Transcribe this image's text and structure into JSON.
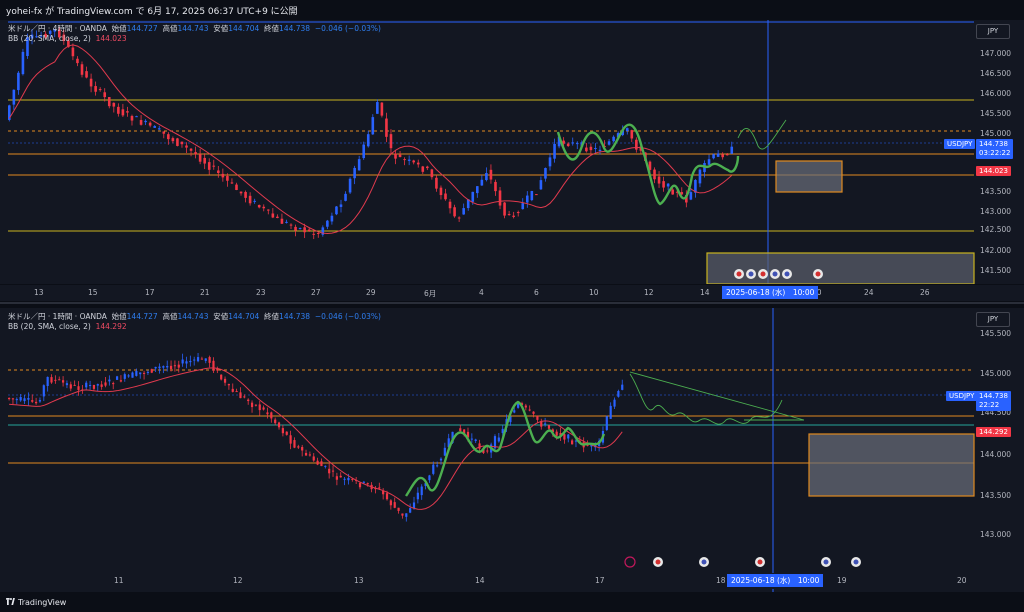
{
  "header": {
    "publish_line": "yohei-fx が TradingView.com で 6月 17, 2025 06:37 UTC+9 に公開"
  },
  "pane_a": {
    "symbol": "米ドル／円 · 4時間 · OANDA",
    "open_label": "始値",
    "open": "144.727",
    "high_label": "高値",
    "high": "144.743",
    "low_label": "安値",
    "low": "144.704",
    "close_label": "終値",
    "close": "144.738",
    "change": "−0.046 (−0.03%)",
    "bb_label": "BB (20, SMA, close, 2)",
    "bb_value": "144.023",
    "currency": "JPY",
    "price_ticks": [
      "147.000",
      "146.500",
      "146.000",
      "145.500",
      "145.000",
      "144.500",
      "144.000",
      "143.500",
      "143.000",
      "142.500",
      "142.000",
      "141.500"
    ],
    "tag_symbol": "USDJPY",
    "tag_price": "144.738",
    "tag_countdown": "03:22:22",
    "tag_bb": "144.023",
    "x_labels": [
      "13",
      "15",
      "17",
      "21",
      "23",
      "27",
      "29",
      "6月",
      "4",
      "6",
      "10",
      "12",
      "14",
      "20",
      "24",
      "26"
    ],
    "crosshair_date": "2025-06-18 (水)　10:00"
  },
  "pane_b": {
    "symbol": "米ドル／円 · 1時間 · OANDA",
    "open_label": "始値",
    "open": "144.727",
    "high_label": "高値",
    "high": "144.743",
    "low_label": "安値",
    "low": "144.704",
    "close_label": "終値",
    "close": "144.738",
    "change": "−0.046 (−0.03%)",
    "bb_label": "BB (20, SMA, close, 2)",
    "bb_value": "144.292",
    "currency": "JPY",
    "price_ticks": [
      "145.500",
      "145.000",
      "144.500",
      "144.000",
      "143.500",
      "143.000"
    ],
    "tag_symbol": "USDJPY",
    "tag_price": "144.738",
    "tag_countdown": "22:22",
    "tag_bb": "144.292",
    "x_labels": [
      "11",
      "12",
      "13",
      "14",
      "17",
      "18",
      "19",
      "20"
    ],
    "crosshair_date": "2025-06-18 (水)　10:00"
  },
  "footer": {
    "brand": "TradingView"
  },
  "colors": {
    "bull": "#2962ff",
    "bear": "#f23645",
    "bb": "#e03a4e",
    "level_yellow": "#c9b320",
    "level_orange": "#e08a20",
    "zigzag": "#4caf50"
  }
}
